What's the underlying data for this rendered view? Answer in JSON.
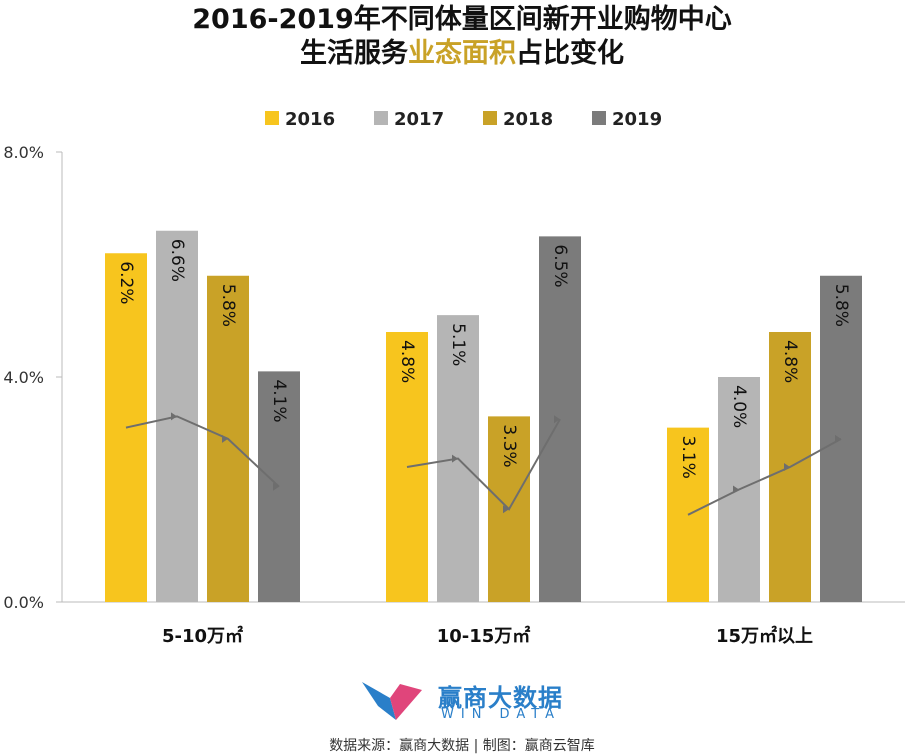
{
  "title": {
    "line1": "2016-2019年不同体量区间新开业购物中心",
    "line2_pre": "生活服务",
    "line2_highlight": "业态面积",
    "line2_post": "占比变化"
  },
  "colors": {
    "2016": "#f7c51e",
    "2017": "#b5b5b5",
    "2018": "#c9a227",
    "2019": "#7b7b7b",
    "trend_line": "#6e6e6e",
    "title_highlight": "#c9a227",
    "brand": "#2a7fc9"
  },
  "chart_data": {
    "type": "bar",
    "categories": [
      "5-10万㎡",
      "10-15万㎡",
      "15万㎡以上"
    ],
    "series": [
      {
        "name": "2016",
        "values": [
          6.2,
          4.8,
          3.1
        ]
      },
      {
        "name": "2017",
        "values": [
          6.6,
          5.1,
          4.0
        ]
      },
      {
        "name": "2018",
        "values": [
          5.8,
          3.3,
          4.8
        ]
      },
      {
        "name": "2019",
        "values": [
          4.1,
          6.5,
          5.8
        ]
      }
    ],
    "data_labels": [
      [
        "6.2%",
        "6.6%",
        "5.8%",
        "4.1%"
      ],
      [
        "4.8%",
        "5.1%",
        "3.3%",
        "6.5%"
      ],
      [
        "3.1%",
        "4.0%",
        "4.8%",
        "5.8%"
      ]
    ],
    "y_ticks": [
      "0.0%",
      "4.0%",
      "8.0%"
    ],
    "ylim": [
      0,
      8
    ],
    "legend_position": "top",
    "grid": false,
    "trend_lines": true
  },
  "logo": {
    "name": "赢商大数据",
    "sub": "WIN DATA"
  },
  "source": "数据来源：赢商大数据 | 制图：赢商云智库"
}
